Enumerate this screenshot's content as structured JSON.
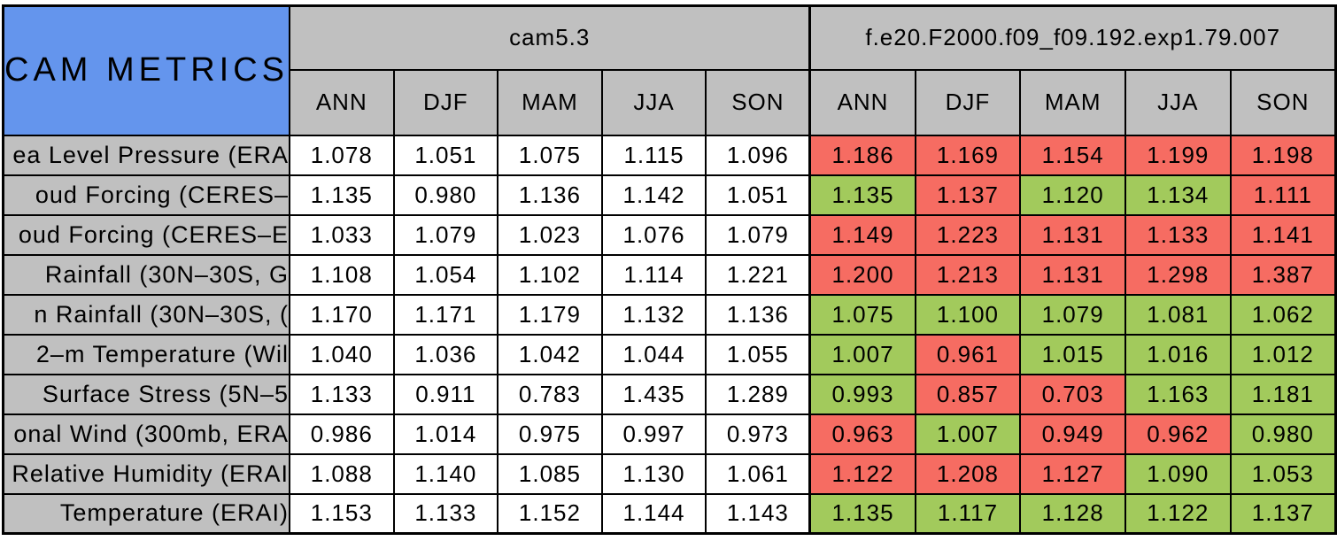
{
  "colors": {
    "title_blue": "#6495ed",
    "header_gray": "#c0c0c0",
    "cell_white": "#ffffff",
    "red": "#f66c62",
    "green": "#a2ca5c",
    "border_black": "#000000"
  },
  "chart_data": {
    "type": "table",
    "title": "CAM METRICS",
    "column_groups": [
      "cam5.3",
      "f.e20.F2000.f09_f09.192.exp1.79.007"
    ],
    "sub_columns": [
      "ANN",
      "DJF",
      "MAM",
      "JJA",
      "SON"
    ],
    "rows": [
      {
        "label": "ea Level Pressure (ERA",
        "cam53": [
          "1.078",
          "1.051",
          "1.075",
          "1.115",
          "1.096"
        ],
        "exp": [
          "1.186",
          "1.169",
          "1.154",
          "1.199",
          "1.198"
        ],
        "exp_colors": [
          "red",
          "red",
          "red",
          "red",
          "red"
        ]
      },
      {
        "label": "oud Forcing (CERES–",
        "cam53": [
          "1.135",
          "0.980",
          "1.136",
          "1.142",
          "1.051"
        ],
        "exp": [
          "1.135",
          "1.137",
          "1.120",
          "1.134",
          "1.111"
        ],
        "exp_colors": [
          "green",
          "red",
          "green",
          "green",
          "red"
        ]
      },
      {
        "label": "oud Forcing (CERES–E",
        "cam53": [
          "1.033",
          "1.079",
          "1.023",
          "1.076",
          "1.079"
        ],
        "exp": [
          "1.149",
          "1.223",
          "1.131",
          "1.133",
          "1.141"
        ],
        "exp_colors": [
          "red",
          "red",
          "red",
          "red",
          "red"
        ]
      },
      {
        "label": " Rainfall (30N–30S, G",
        "cam53": [
          "1.108",
          "1.054",
          "1.102",
          "1.114",
          "1.221"
        ],
        "exp": [
          "1.200",
          "1.213",
          "1.131",
          "1.298",
          "1.387"
        ],
        "exp_colors": [
          "red",
          "red",
          "red",
          "red",
          "red"
        ]
      },
      {
        "label": "n Rainfall (30N–30S, (",
        "cam53": [
          "1.170",
          "1.171",
          "1.179",
          "1.132",
          "1.136"
        ],
        "exp": [
          "1.075",
          "1.100",
          "1.079",
          "1.081",
          "1.062"
        ],
        "exp_colors": [
          "green",
          "green",
          "green",
          "green",
          "green"
        ]
      },
      {
        "label": "2–m Temperature (Wil",
        "cam53": [
          "1.040",
          "1.036",
          "1.042",
          "1.044",
          "1.055"
        ],
        "exp": [
          "1.007",
          "0.961",
          "1.015",
          "1.016",
          "1.012"
        ],
        "exp_colors": [
          "green",
          "red",
          "green",
          "green",
          "green"
        ]
      },
      {
        "label": " Surface Stress (5N–5",
        "cam53": [
          "1.133",
          "0.911",
          "0.783",
          "1.435",
          "1.289"
        ],
        "exp": [
          "0.993",
          "0.857",
          "0.703",
          "1.163",
          "1.181"
        ],
        "exp_colors": [
          "green",
          "red",
          "red",
          "green",
          "green"
        ]
      },
      {
        "label": "onal Wind (300mb, ERA",
        "cam53": [
          "0.986",
          "1.014",
          "0.975",
          "0.997",
          "0.973"
        ],
        "exp": [
          "0.963",
          "1.007",
          "0.949",
          "0.962",
          "0.980"
        ],
        "exp_colors": [
          "red",
          "green",
          "red",
          "red",
          "green"
        ]
      },
      {
        "label": "Relative Humidity (ERAI",
        "cam53": [
          "1.088",
          "1.140",
          "1.085",
          "1.130",
          "1.061"
        ],
        "exp": [
          "1.122",
          "1.208",
          "1.127",
          "1.090",
          "1.053"
        ],
        "exp_colors": [
          "red",
          "red",
          "red",
          "green",
          "green"
        ]
      },
      {
        "label": " Temperature (ERAI)",
        "cam53": [
          "1.153",
          "1.133",
          "1.152",
          "1.144",
          "1.143"
        ],
        "exp": [
          "1.135",
          "1.117",
          "1.128",
          "1.122",
          "1.137"
        ],
        "exp_colors": [
          "green",
          "green",
          "green",
          "green",
          "green"
        ]
      }
    ]
  }
}
